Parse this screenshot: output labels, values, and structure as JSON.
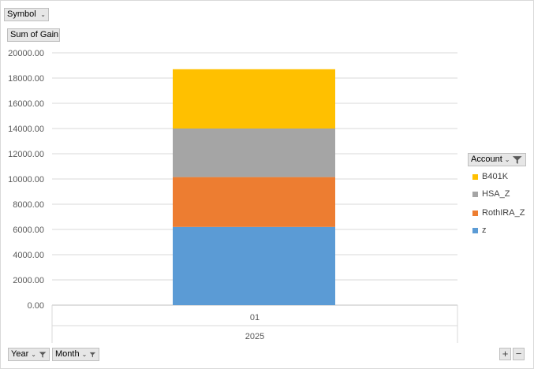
{
  "filters": {
    "symbol_label": "Symbol",
    "values_label": "Sum of Gain",
    "legend_field_label": "Account",
    "axis_fields": [
      "Year",
      "Month"
    ]
  },
  "zoom": {
    "plus": "+",
    "minus": "−"
  },
  "colors": {
    "B401K": "#ffc000",
    "HSA_Z": "#a5a5a5",
    "RothIRA_Z": "#ed7d31",
    "z": "#5b9bd5"
  },
  "chart_data": {
    "type": "bar",
    "stacked": true,
    "categories": [
      "01"
    ],
    "category_group": "2025",
    "series": [
      {
        "name": "z",
        "values": [
          6200
        ]
      },
      {
        "name": "RothIRA_Z",
        "values": [
          3950
        ]
      },
      {
        "name": "HSA_Z",
        "values": [
          3850
        ]
      },
      {
        "name": "B401K",
        "values": [
          4700
        ]
      }
    ],
    "ylim": [
      0,
      20000
    ],
    "yticks": [
      "0.00",
      "2000.00",
      "4000.00",
      "6000.00",
      "8000.00",
      "10000.00",
      "12000.00",
      "14000.00",
      "16000.00",
      "18000.00",
      "20000.00"
    ],
    "grid": true,
    "legend_position": "right",
    "legend_order": [
      "B401K",
      "HSA_Z",
      "RothIRA_Z",
      "z"
    ]
  }
}
